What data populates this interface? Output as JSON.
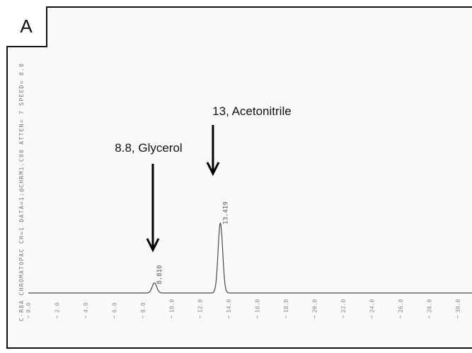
{
  "panel_label": "A",
  "chart_data": {
    "type": "line",
    "title": "",
    "header_text": "C-R8A CHROMATOPAC CH=1 DATA=1:@CHRM1.C00 ATTEN= 7 SPEED= 8.0",
    "xlabel": "",
    "ylabel": "",
    "x_ticks": [
      "0.0",
      "2.0",
      "4.0",
      "6.0",
      "8.0",
      "10.0",
      "12.0",
      "14.0",
      "16.0",
      "18.0",
      "20.0",
      "22.0",
      "24.0",
      "26.0",
      "28.0",
      "30.0"
    ],
    "xlim": [
      0,
      31
    ],
    "baseline": 0,
    "peaks": [
      {
        "retention_time": 8.81,
        "height": 0.09,
        "label": "8.810"
      },
      {
        "retention_time": 13.419,
        "height": 0.62,
        "label": "13.419"
      }
    ],
    "annotations": [
      {
        "text": "8.8, Glycerol",
        "retention_time": 8.8
      },
      {
        "text": "13, Acetonitrile",
        "retention_time": 13.0
      }
    ],
    "colors": {
      "trace": "#4a4a4a",
      "arrow": "#000000",
      "frame": "#111111"
    }
  }
}
